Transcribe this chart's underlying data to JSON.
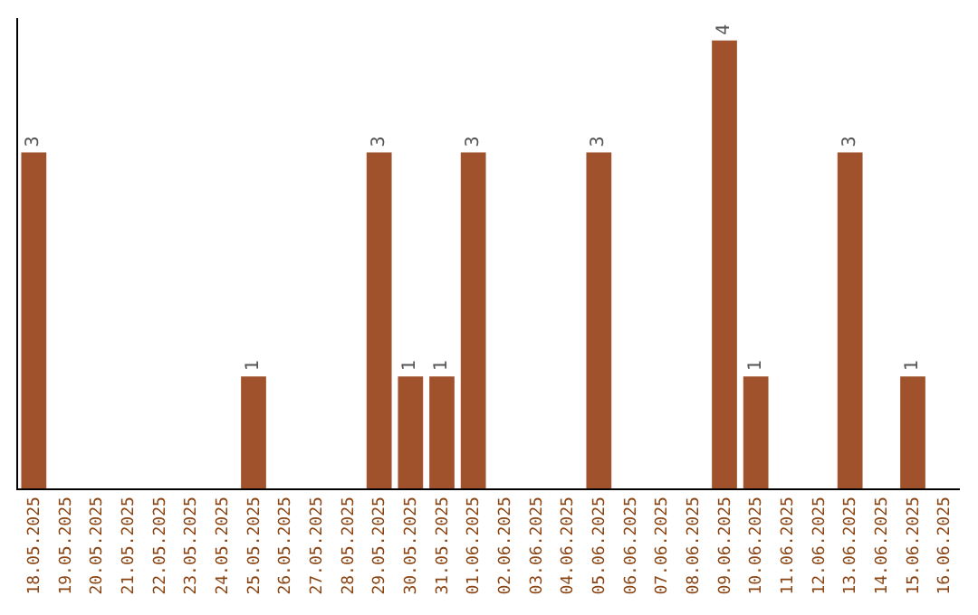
{
  "chart_data": {
    "type": "bar",
    "categories": [
      "18.05.2025",
      "19.05.2025",
      "20.05.2025",
      "21.05.2025",
      "22.05.2025",
      "23.05.2025",
      "24.05.2025",
      "25.05.2025",
      "26.05.2025",
      "27.05.2025",
      "28.05.2025",
      "29.05.2025",
      "30.05.2025",
      "31.05.2025",
      "01.06.2025",
      "02.06.2025",
      "03.06.2025",
      "04.06.2025",
      "05.06.2025",
      "06.06.2025",
      "07.06.2025",
      "08.06.2025",
      "09.06.2025",
      "10.06.2025",
      "11.06.2025",
      "12.06.2025",
      "13.06.2025",
      "14.06.2025",
      "15.06.2025",
      "16.06.2025"
    ],
    "values": [
      3,
      0,
      0,
      0,
      0,
      0,
      0,
      1,
      0,
      0,
      0,
      3,
      1,
      1,
      3,
      0,
      0,
      0,
      3,
      0,
      0,
      0,
      4,
      1,
      0,
      0,
      3,
      0,
      1,
      0
    ],
    "value_labels": [
      "3",
      null,
      null,
      null,
      null,
      null,
      null,
      "1",
      null,
      null,
      null,
      "3",
      "1",
      "1",
      "3",
      null,
      null,
      null,
      "3",
      null,
      null,
      null,
      "4",
      "1",
      null,
      null,
      "3",
      null,
      "1",
      null
    ],
    "color": "#a0522d",
    "ylim": [
      0,
      4.2
    ],
    "tick_labels": "x"
  }
}
